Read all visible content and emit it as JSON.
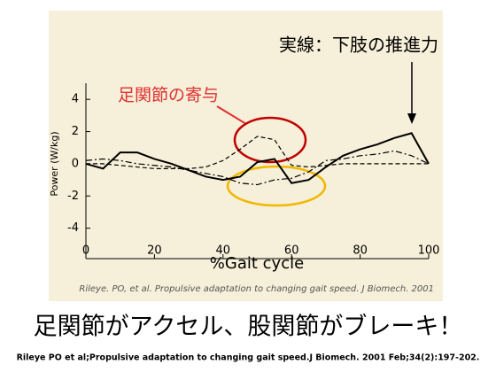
{
  "chart_data": {
    "type": "line",
    "xlabel": "%Gait cycle",
    "ylabel": "Power (W/kg)",
    "source": "Rileye. PO, et al. Propulsive adaptation to changing gait speed. J Biomech. 2001",
    "annotations": [
      "実線：下肢の推進力",
      "足関節の寄与"
    ],
    "x": [
      0,
      5,
      10,
      15,
      20,
      25,
      30,
      35,
      40,
      45,
      50,
      55,
      60,
      65,
      70,
      75,
      80,
      85,
      90,
      95,
      100
    ],
    "series": [
      {
        "color": "#000000",
        "style": "solid",
        "values": [
          0.0,
          -0.3,
          0.7,
          0.7,
          0.3,
          0.0,
          -0.4,
          -0.8,
          -1.0,
          -0.8,
          0.1,
          0.3,
          -1.2,
          -1.0,
          -0.2,
          0.5,
          0.9,
          1.2,
          1.6,
          1.9,
          0.0
        ]
      },
      {
        "color": "#000000",
        "style": "dashed",
        "values": [
          0,
          0,
          -0.1,
          -0.2,
          -0.3,
          -0.3,
          -0.3,
          -0.2,
          0.2,
          0.9,
          1.7,
          1.5,
          -0.1,
          -0.2,
          -0.1,
          0,
          0,
          0,
          0,
          0,
          0
        ]
      },
      {
        "color": "#000000",
        "style": "dashdot",
        "values": [
          0.2,
          0.3,
          0.2,
          0,
          -0.1,
          -0.2,
          -0.4,
          -0.6,
          -0.8,
          -1.2,
          -1.3,
          -1.0,
          -0.9,
          -0.5,
          0.2,
          0.3,
          0.5,
          0.6,
          0.8,
          0.5,
          0
        ]
      }
    ],
    "xlim": [
      0,
      100
    ],
    "xticks": [
      0,
      20,
      40,
      60,
      80,
      100
    ],
    "ylim": [
      -6,
      5
    ],
    "yticks": [
      4,
      2,
      0,
      -2,
      -4
    ]
  },
  "slide": {
    "caption": "足関節がアクセル、股関節がブレーキ！",
    "reference": "Rileye PO et al;Propulsive adaptation to changing gait speed.J Biomech. 2001 Feb;34(2):197-202."
  }
}
